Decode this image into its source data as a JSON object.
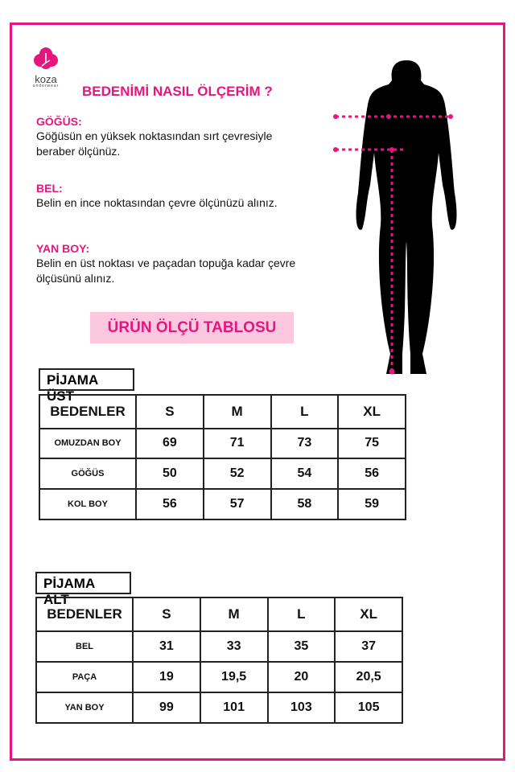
{
  "brand": {
    "name": "koza",
    "tagline": "underwear",
    "color": "#e5177e"
  },
  "title": "BEDENİMİ NASIL ÖLÇERİM ?",
  "sections": [
    {
      "heading": "GÖĞÜS:",
      "text": "Göğüsün en yüksek noktasından sırt çevresiyle beraber ölçünüz."
    },
    {
      "heading": "BEL:",
      "text": "Belin en ince noktasından çevre ölçünüzü alınız."
    },
    {
      "heading": "YAN BOY:",
      "text": "Belin en üst noktası ve paçadan topuğa kadar çevre ölçüsünü alınız."
    }
  ],
  "banner": "ÜRÜN ÖLÇÜ TABLOSU",
  "tables": [
    {
      "title": "PİJAMA ÜST",
      "headers": [
        "BEDENLER",
        "S",
        "M",
        "L",
        "XL"
      ],
      "rows": [
        [
          "OMUZDAN BOY",
          "69",
          "71",
          "73",
          "75"
        ],
        [
          "GÖĞÜS",
          "50",
          "52",
          "54",
          "56"
        ],
        [
          "KOL BOY",
          "56",
          "57",
          "58",
          "59"
        ]
      ]
    },
    {
      "title": "PİJAMA ALT",
      "headers": [
        "BEDENLER",
        "S",
        "M",
        "L",
        "XL"
      ],
      "rows": [
        [
          "BEL",
          "31",
          "33",
          "35",
          "37"
        ],
        [
          "PAÇA",
          "19",
          "19,5",
          "20",
          "20,5"
        ],
        [
          "YAN BOY",
          "99",
          "101",
          "103",
          "105"
        ]
      ]
    }
  ]
}
